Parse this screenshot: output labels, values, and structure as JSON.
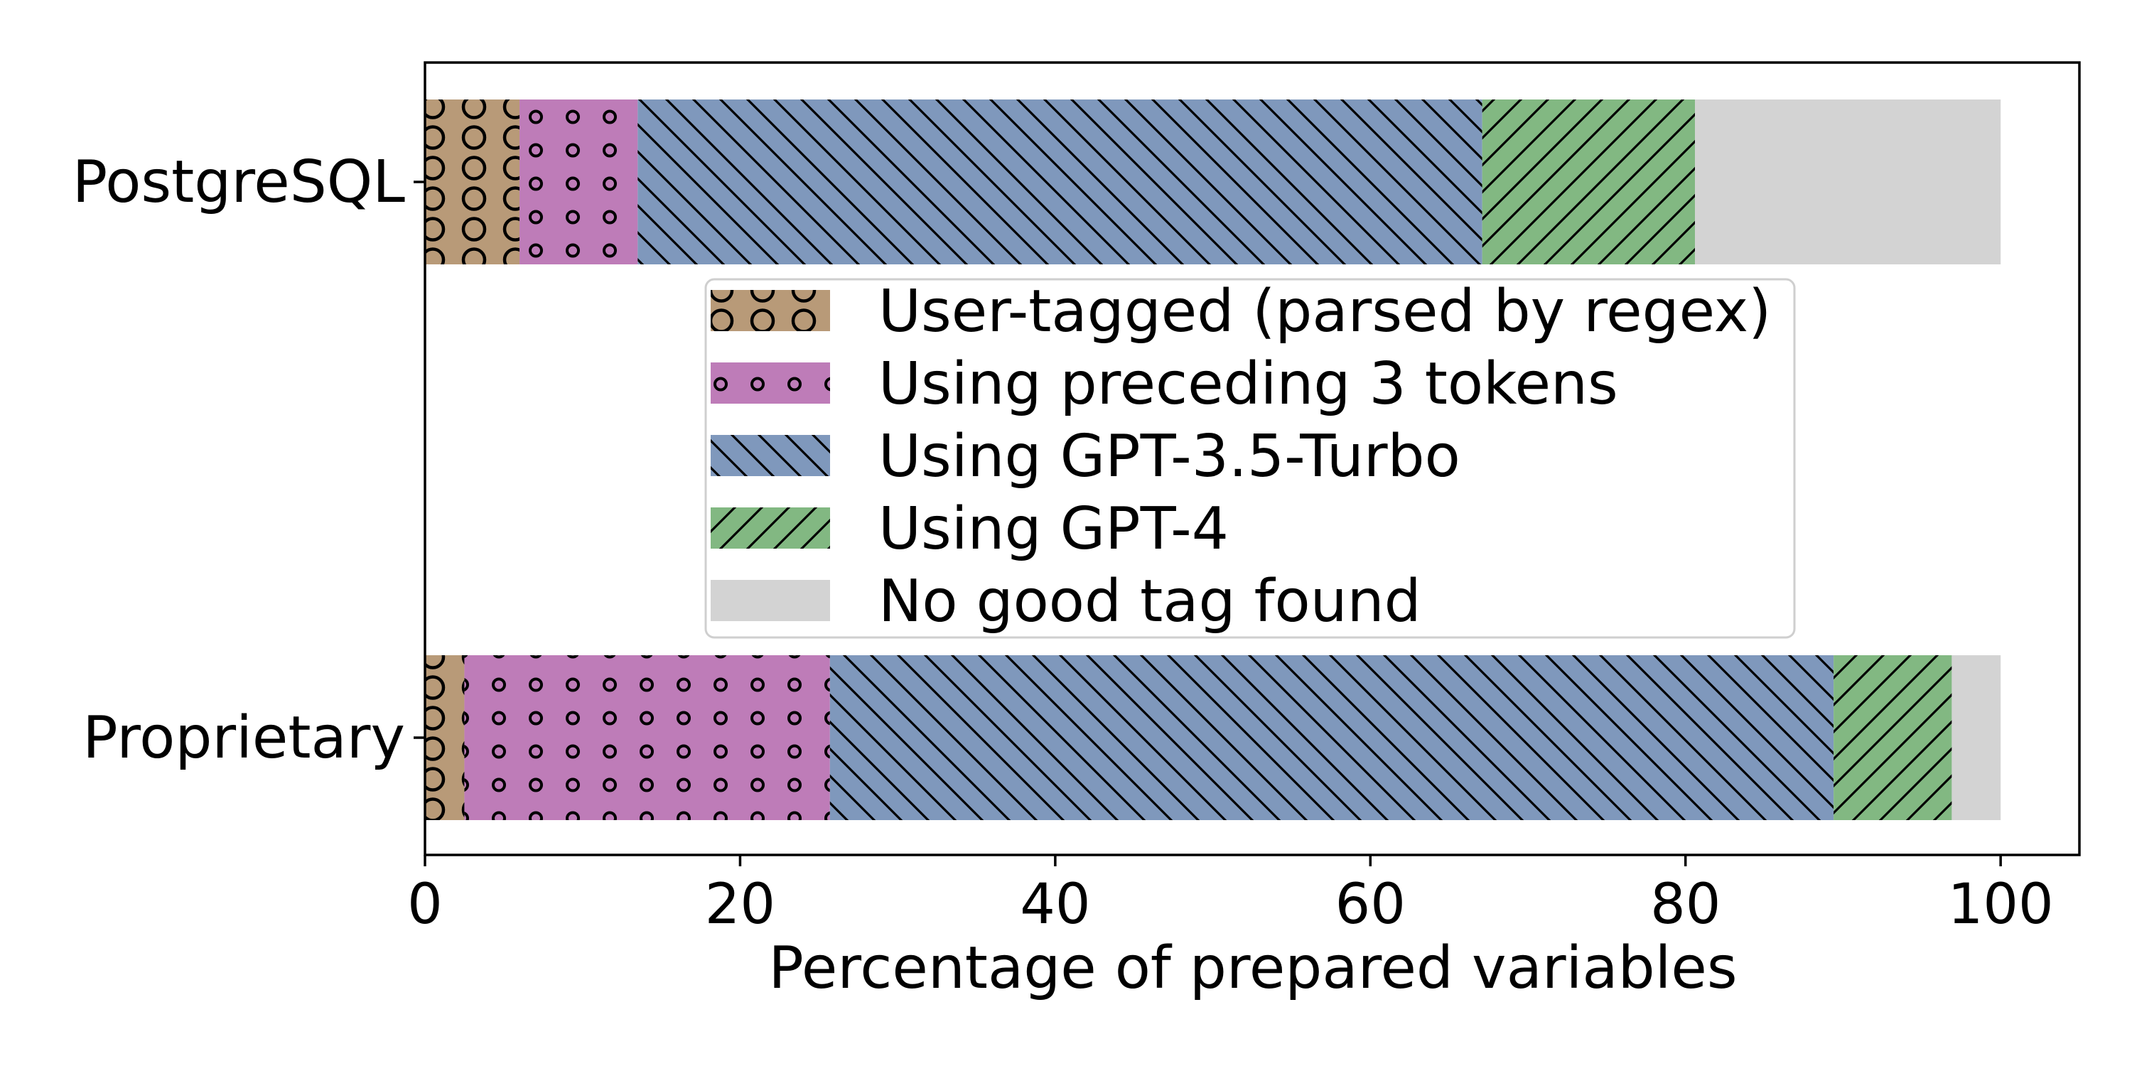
{
  "chart_data": {
    "type": "bar",
    "orientation": "horizontal",
    "stacked": true,
    "categories": [
      "PostgreSQL",
      "Proprietary"
    ],
    "xlabel": "Percentage of prepared variables",
    "ylabel": "",
    "xlim": [
      0,
      105
    ],
    "xticks": [
      0,
      20,
      40,
      60,
      80,
      100
    ],
    "grid": false,
    "legend_position": "center",
    "series": [
      {
        "name": "User-tagged (parsed by regex)",
        "values": [
          6.0,
          2.5
        ],
        "color": "#b89a78",
        "hatch": "big-circles"
      },
      {
        "name": "Using preceding 3 tokens",
        "values": [
          7.5,
          23.2
        ],
        "color": "#be7cb8",
        "hatch": "small-circles"
      },
      {
        "name": "Using GPT-3.5-Turbo",
        "values": [
          53.6,
          63.7
        ],
        "color": "#7f98bc",
        "hatch": "backslash"
      },
      {
        "name": "Using GPT-4",
        "values": [
          13.5,
          7.5
        ],
        "color": "#82b882",
        "hatch": "slash"
      },
      {
        "name": "No good tag found",
        "values": [
          19.4,
          3.1
        ],
        "color": "#d3d3d3",
        "hatch": "none"
      }
    ]
  }
}
